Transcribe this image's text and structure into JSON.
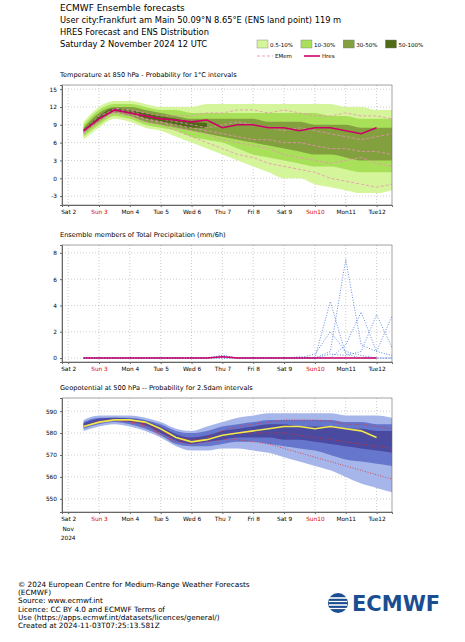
{
  "header": {
    "title": "ECMWF Ensemble forecasts",
    "location": "User city:Frankfurt am Main 50.09°N 8.65°E (ENS land point) 119 m",
    "subtitle": "HRES Forecast and ENS Distribution",
    "date": "Saturday 2 November 2024 12 UTC"
  },
  "footer": {
    "lines": [
      "© 2024 European Centre for Medium-Range Weather Forecasts",
      "(ECMWF)",
      "Source: www.ecmwf.int",
      "Licence: CC BY 4.0 and ECMWF Terms of",
      "Use (https://apps.ecmwf.int/datasets/licences/general/)",
      "Created at 2024-11-03T07:25:13.581Z"
    ],
    "logo": "ECMWF"
  },
  "chart_data": [
    {
      "type": "line",
      "title": "Temperature at 850 hPa - Probability for 1°C intervals",
      "grid": true,
      "legend": "top right",
      "x": [
        2.5,
        3,
        3.5,
        4,
        4.5,
        5,
        5.5,
        6,
        6.5,
        7,
        7.5,
        8,
        8.5,
        9,
        9.5,
        10,
        10.5,
        11,
        11.5,
        12,
        12.5
      ],
      "xlim": [
        1.8,
        12.5
      ],
      "xticks": [
        {
          "value": 2,
          "label": "Sat 2"
        },
        {
          "value": 3,
          "label": "Sun 3"
        },
        {
          "value": 4,
          "label": "Mon 4"
        },
        {
          "value": 5,
          "label": "Tue 5"
        },
        {
          "value": 6,
          "label": "Wed 6"
        },
        {
          "value": 7,
          "label": "Thu 7"
        },
        {
          "value": 8,
          "label": "Fri 8"
        },
        {
          "value": 9,
          "label": "Sat 9"
        },
        {
          "value": 10,
          "label": "Sun10"
        },
        {
          "value": 11,
          "label": "Mon11"
        },
        {
          "value": 12,
          "label": "Tue12"
        }
      ],
      "ylim": [
        -4.5,
        15.7
      ],
      "yticks": [
        -3,
        0,
        3,
        6,
        9,
        12,
        15
      ],
      "series": [
        {
          "name": "0.5-10%",
          "type": "band",
          "color": "#d4f59a",
          "low": [
            6.5,
            8.5,
            10,
            9.5,
            8.5,
            8,
            7,
            6,
            5,
            4,
            3,
            2,
            1,
            0,
            0,
            -1,
            -1.5,
            -2,
            -2.5,
            -2.5,
            -2
          ],
          "high": [
            9.5,
            12,
            13,
            13,
            12.5,
            12,
            12,
            12,
            12.5,
            12.5,
            12.5,
            12.5,
            12.5,
            12.5,
            12.5,
            12.5,
            12.5,
            12,
            12,
            11.5,
            11.5
          ]
        },
        {
          "name": "10-30%",
          "type": "band",
          "color": "#a8e05a",
          "low": [
            7,
            9,
            10.5,
            10,
            9,
            8.5,
            8,
            7,
            6.5,
            6,
            5,
            4,
            3.5,
            3,
            2.5,
            2,
            2,
            1.5,
            1,
            1,
            1
          ],
          "high": [
            9,
            11.5,
            12.5,
            12.5,
            12,
            11.5,
            11.5,
            11,
            11,
            11,
            11,
            11,
            11,
            11,
            11,
            11,
            10.5,
            10.5,
            10,
            10,
            10
          ]
        },
        {
          "name": "30-50%",
          "type": "band",
          "color": "#83a03e",
          "low": [
            7.5,
            9.5,
            11,
            10.5,
            9.5,
            9,
            8.5,
            8,
            7.5,
            7,
            6.5,
            6,
            5.5,
            5,
            4.5,
            4,
            4,
            3.5,
            3,
            3,
            3
          ],
          "high": [
            8.5,
            11,
            12,
            12,
            11.5,
            11,
            10.5,
            10,
            10,
            10,
            10,
            10,
            9.5,
            9.5,
            9.5,
            9,
            9,
            9,
            8.5,
            8.5,
            8.5
          ]
        },
        {
          "name": "50-100%",
          "type": "band",
          "color": "#4f6b16",
          "low": [
            7.8,
            10,
            11.3,
            11,
            10,
            9.5,
            9,
            8.5,
            8.5,
            null,
            null,
            null,
            null,
            null,
            null,
            null,
            null,
            null,
            null,
            null,
            null
          ],
          "high": [
            8.2,
            10.5,
            11.8,
            11.5,
            11,
            10.5,
            10,
            9.5,
            9.3,
            null,
            null,
            null,
            null,
            null,
            null,
            null,
            null,
            null,
            null,
            null,
            null
          ]
        },
        {
          "name": "EMem",
          "type": "line",
          "line_style": "dashed",
          "color": "#f08cbf",
          "values": [
            8,
            10,
            11.8,
            11.5,
            11,
            10.5,
            10.5,
            10.5,
            11,
            11,
            11.5,
            11.5,
            11,
            11.5,
            11,
            10.5,
            10.5,
            11,
            10.5,
            10.5,
            10
          ]
        },
        {
          "type": "line",
          "line_style": "dashed",
          "color": "#f08cbf",
          "values": [
            7.5,
            9.5,
            11,
            10.5,
            9.5,
            9,
            8,
            7,
            6,
            5,
            4,
            3.5,
            2.5,
            2,
            1.5,
            1,
            0,
            -0.5,
            -1,
            -1.5,
            -1
          ]
        },
        {
          "type": "line",
          "line_style": "dashed",
          "color": "#f08cbf",
          "values": [
            8,
            10.5,
            11.5,
            11,
            10,
            9.5,
            9,
            8.5,
            8,
            7.5,
            7,
            6.5,
            6.5,
            6,
            6,
            5.5,
            5,
            5,
            4.5,
            4.5,
            4
          ]
        },
        {
          "type": "line",
          "line_style": "dashed",
          "color": "#f08cbf",
          "values": [
            7.8,
            10,
            11.5,
            11.3,
            10.5,
            10,
            9.5,
            9,
            8.5,
            9,
            9.5,
            9,
            8.5,
            8,
            8.5,
            8,
            7.5,
            7,
            6.5,
            7,
            7.5
          ]
        },
        {
          "type": "line",
          "line_style": "dashed",
          "color": "#f08cbf",
          "values": [
            7.6,
            9.8,
            11.2,
            10.8,
            10,
            9.5,
            8.5,
            8,
            7.5,
            6.5,
            6,
            5.5,
            5,
            4,
            3.5,
            3,
            2.5,
            3,
            3.5,
            2.5,
            2
          ]
        },
        {
          "name": "Hres",
          "type": "line",
          "line_style": "solid",
          "color": "#cc0066",
          "values": [
            8,
            10,
            11.5,
            11,
            10.5,
            10,
            9.8,
            9.5,
            9.8,
            8.5,
            9,
            9,
            8.5,
            8.5,
            8,
            8.5,
            8.5,
            8,
            7.5,
            8.5,
            null
          ]
        }
      ]
    },
    {
      "type": "line",
      "title": "Ensemble members of Total Precipitation (mm/6h)",
      "grid": true,
      "x": [
        2.5,
        3,
        3.5,
        4,
        4.5,
        5,
        5.5,
        6,
        6.5,
        7,
        7.5,
        8,
        8.5,
        9,
        9.5,
        10,
        10.5,
        11,
        11.5,
        12,
        12.5
      ],
      "xlim": [
        1.8,
        12.5
      ],
      "xticks": [
        {
          "value": 2,
          "label": "Sat 2"
        },
        {
          "value": 3,
          "label": "Sun 3"
        },
        {
          "value": 4,
          "label": "Mon 4"
        },
        {
          "value": 5,
          "label": "Tue 5"
        },
        {
          "value": 6,
          "label": "Wed 6"
        },
        {
          "value": 7,
          "label": "Thu 7"
        },
        {
          "value": 8,
          "label": "Fri 8"
        },
        {
          "value": 9,
          "label": "Sat 9"
        },
        {
          "value": 10,
          "label": "Sun10"
        },
        {
          "value": 11,
          "label": "Mon11"
        },
        {
          "value": 12,
          "label": "Tue12"
        }
      ],
      "ylim": [
        -0.3,
        8.6
      ],
      "yticks": [
        0,
        2,
        4,
        6,
        8
      ],
      "series": [
        {
          "type": "line",
          "line_style": "dotted",
          "color": "#3a6fd8",
          "values": [
            0,
            0,
            0,
            0,
            0,
            0,
            0,
            0,
            0,
            0.2,
            0,
            0,
            0,
            0,
            0,
            0,
            4.3,
            0.3,
            0,
            0,
            0
          ]
        },
        {
          "type": "line",
          "line_style": "dotted",
          "color": "#3a6fd8",
          "values": [
            0,
            0,
            0,
            0,
            0,
            0,
            0,
            0,
            0,
            0,
            0,
            0,
            0,
            0,
            0,
            0,
            0.5,
            7.5,
            1,
            0.5,
            0.2
          ]
        },
        {
          "type": "line",
          "line_style": "dotted",
          "color": "#3a6fd8",
          "values": [
            0,
            0,
            0,
            0,
            0,
            0,
            0,
            0,
            0,
            0.1,
            0,
            0,
            0,
            0,
            0,
            0,
            0,
            1,
            3.5,
            0.5,
            3.2
          ]
        },
        {
          "type": "line",
          "line_style": "dotted",
          "color": "#3a6fd8",
          "values": [
            0,
            0,
            0,
            0,
            0,
            0,
            0,
            0,
            0,
            0,
            0,
            0,
            0,
            0,
            0,
            0.3,
            2,
            0.5,
            0.2,
            0,
            0
          ]
        },
        {
          "type": "line",
          "line_style": "dotted",
          "color": "#3a6fd8",
          "values": [
            0,
            0,
            0,
            0,
            0,
            0,
            0,
            0,
            0,
            0.2,
            0,
            0,
            0,
            0,
            0.1,
            0,
            0.3,
            0.2,
            0.5,
            3.3,
            0.8
          ]
        },
        {
          "type": "line",
          "line_style": "solid",
          "color": "#cc0066",
          "values": [
            0,
            0,
            0,
            0,
            0,
            0,
            0,
            0,
            0,
            0.1,
            0,
            0,
            0,
            0,
            0,
            0,
            0,
            0,
            0,
            0,
            null
          ]
        }
      ]
    },
    {
      "type": "line",
      "title": "Geopotential at 500 hPa -- Probability for 2.5dam intervals",
      "grid": true,
      "annotations": [
        "Nov",
        "2024"
      ],
      "x": [
        2.5,
        3,
        3.5,
        4,
        4.5,
        5,
        5.5,
        6,
        6.5,
        7,
        7.5,
        8,
        8.5,
        9,
        9.5,
        10,
        10.5,
        11,
        11.5,
        12,
        12.5
      ],
      "xlim": [
        1.8,
        12.5
      ],
      "xticks": [
        {
          "value": 2,
          "label": "Sat 2"
        },
        {
          "value": 3,
          "label": "Sun 3"
        },
        {
          "value": 4,
          "label": "Mon 4"
        },
        {
          "value": 5,
          "label": "Tue 5"
        },
        {
          "value": 6,
          "label": "Wed 6"
        },
        {
          "value": 7,
          "label": "Thu 7"
        },
        {
          "value": 8,
          "label": "Fri 8"
        },
        {
          "value": 9,
          "label": "Sat 9"
        },
        {
          "value": 10,
          "label": "Sun10"
        },
        {
          "value": 11,
          "label": "Mon11"
        },
        {
          "value": 12,
          "label": "Tue12"
        }
      ],
      "ylim": [
        544,
        596
      ],
      "yticks": [
        550,
        560,
        570,
        580,
        590
      ],
      "series": [
        {
          "type": "band",
          "color": "#a7b6ea",
          "low": [
            581,
            583,
            584,
            583,
            581,
            578,
            574,
            572,
            572,
            573,
            573,
            572,
            571,
            569,
            567,
            565,
            563,
            560,
            557,
            555,
            553
          ],
          "high": [
            586,
            588,
            588,
            588,
            587,
            585,
            582,
            581,
            583,
            585,
            587,
            588,
            589,
            589,
            589,
            589,
            589,
            588,
            588,
            588,
            587
          ]
        },
        {
          "type": "band",
          "color": "#6676cc",
          "low": [
            582,
            584,
            585,
            584,
            582,
            579,
            575,
            574,
            574,
            575,
            576,
            576,
            575,
            574,
            573,
            572,
            570,
            568,
            567,
            566,
            565
          ],
          "high": [
            585,
            587,
            587,
            587,
            586,
            584,
            581,
            580,
            581,
            583,
            584,
            585,
            586,
            586,
            586,
            586,
            586,
            585,
            585,
            584,
            584
          ]
        },
        {
          "type": "band",
          "color": "#4a4aa0",
          "low": [
            583,
            585,
            585.5,
            585,
            583.5,
            580,
            576.5,
            575,
            576,
            577,
            578,
            578,
            578,
            577,
            577,
            576,
            575,
            574,
            573,
            572,
            571
          ],
          "high": [
            584.5,
            586.5,
            587,
            586.5,
            585.5,
            583,
            579.5,
            578,
            579,
            581,
            582,
            583,
            584,
            584,
            583,
            583,
            583,
            582,
            582,
            581,
            581
          ]
        },
        {
          "type": "line",
          "line_style": "dotted",
          "color": "#e03030",
          "values": [
            583,
            585.5,
            586,
            585.5,
            583.5,
            580,
            577,
            576,
            578,
            581,
            583,
            584,
            585,
            586,
            586,
            586,
            585.5,
            584,
            584,
            583,
            582
          ]
        },
        {
          "type": "line",
          "line_style": "dotted",
          "color": "#e03030",
          "values": [
            583,
            585,
            586,
            585,
            583,
            579,
            576,
            575,
            576,
            577,
            577,
            576,
            575,
            573,
            571,
            569,
            567,
            565,
            563,
            561,
            559
          ]
        },
        {
          "type": "line",
          "line_style": "dotted",
          "color": "#e03030",
          "values": [
            583,
            585,
            586,
            586,
            584,
            581,
            578,
            577,
            577,
            579,
            580,
            580,
            580,
            580,
            579,
            578,
            577,
            576,
            575,
            574,
            573
          ]
        },
        {
          "type": "line",
          "line_style": "solid",
          "color": "#f2e84a",
          "values": [
            583,
            585,
            586,
            586,
            585,
            582,
            578,
            576,
            577,
            579,
            580,
            581,
            582,
            583,
            583,
            582,
            583,
            582,
            581,
            578,
            null
          ]
        }
      ]
    }
  ]
}
